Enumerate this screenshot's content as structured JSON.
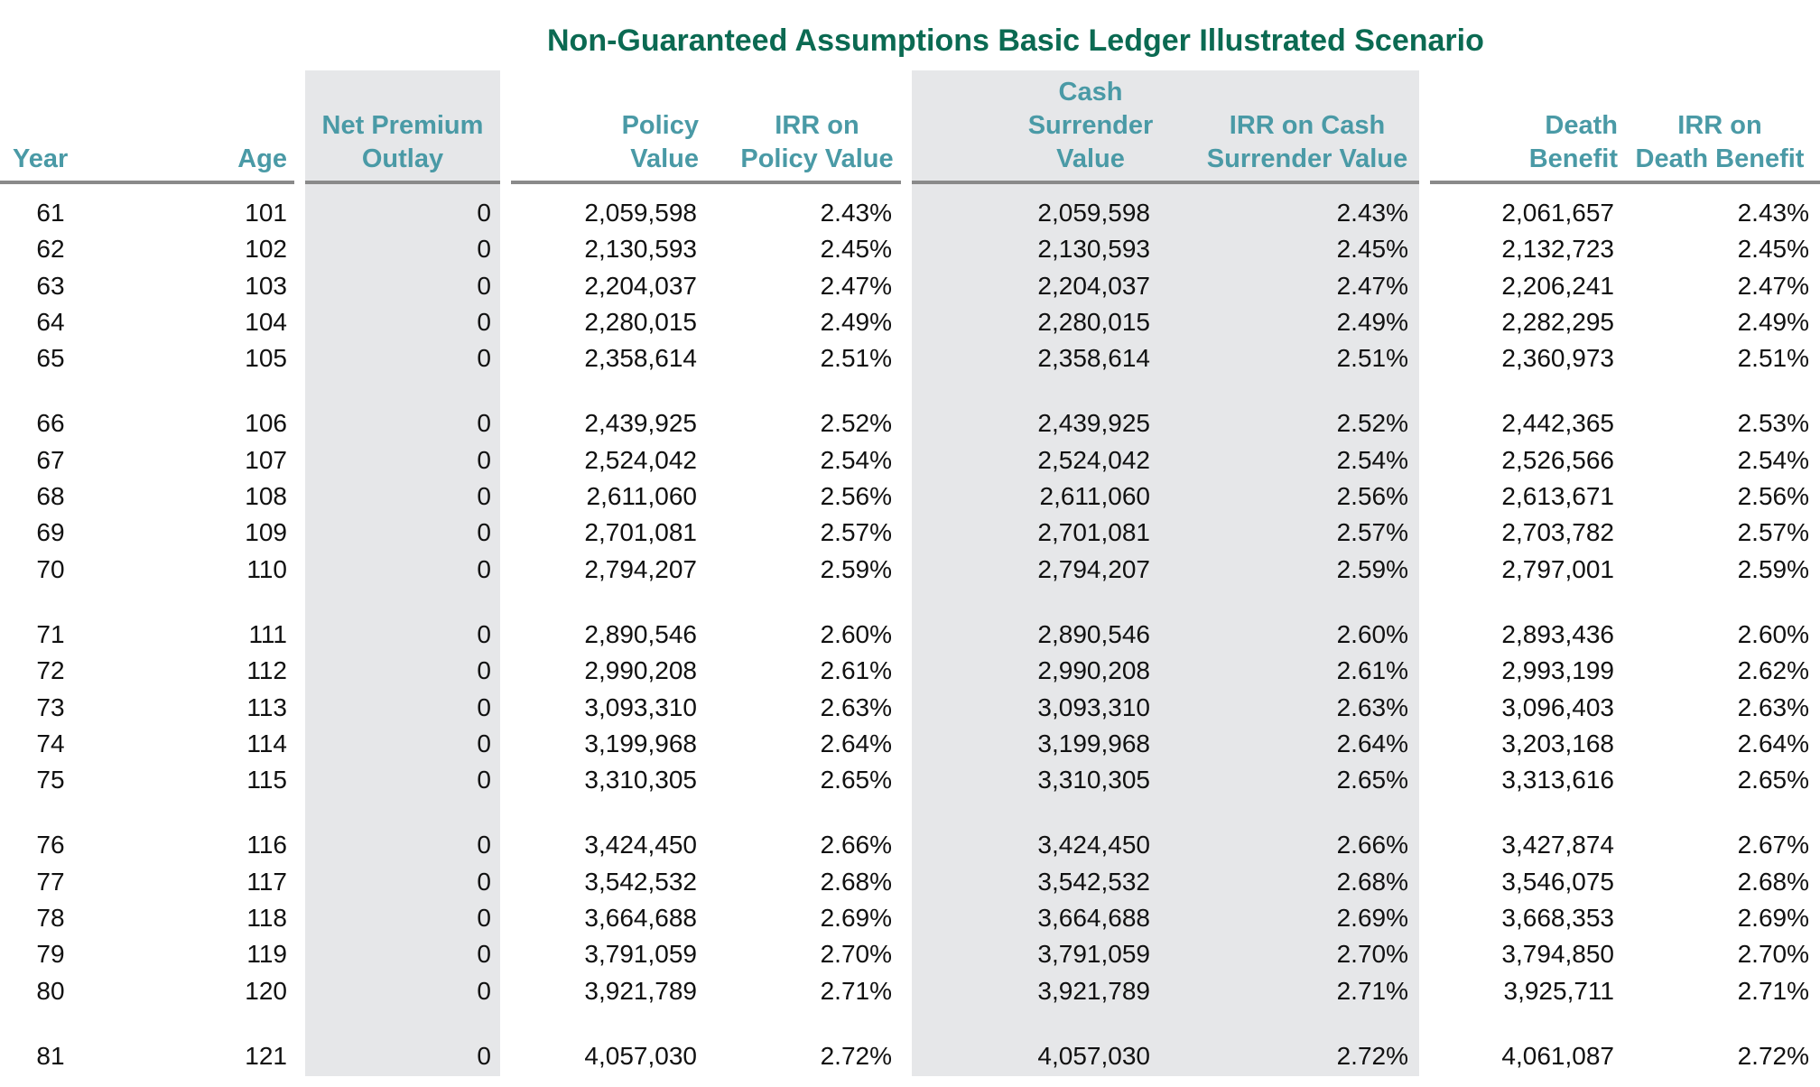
{
  "title": "Non-Guaranteed Assumptions Basic Ledger Illustrated Scenario",
  "columns": {
    "year": [
      "Year"
    ],
    "age": [
      "Age"
    ],
    "net_premium": [
      "Net Premium",
      "Outlay"
    ],
    "policy_value": [
      "Policy",
      "Value"
    ],
    "irr_policy": [
      "IRR on",
      "Policy Value"
    ],
    "cash_surrender": [
      "Cash",
      "Surrender",
      "Value"
    ],
    "irr_cash": [
      "IRR on Cash",
      "Surrender Value"
    ],
    "death_benefit": [
      "Death",
      "Benefit"
    ],
    "irr_death": [
      "IRR on",
      "Death Benefit"
    ]
  },
  "colors": {
    "title": "#0b6a52",
    "header": "#4a9aa6",
    "shade": "#e6e7e9",
    "rule": "#8a8a8a"
  },
  "rows": [
    [
      "61",
      "101",
      "0",
      "2,059,598",
      "2.43%",
      "2,059,598",
      "2.43%",
      "2,061,657",
      "2.43%"
    ],
    [
      "62",
      "102",
      "0",
      "2,130,593",
      "2.45%",
      "2,130,593",
      "2.45%",
      "2,132,723",
      "2.45%"
    ],
    [
      "63",
      "103",
      "0",
      "2,204,037",
      "2.47%",
      "2,204,037",
      "2.47%",
      "2,206,241",
      "2.47%"
    ],
    [
      "64",
      "104",
      "0",
      "2,280,015",
      "2.49%",
      "2,280,015",
      "2.49%",
      "2,282,295",
      "2.49%"
    ],
    [
      "65",
      "105",
      "0",
      "2,358,614",
      "2.51%",
      "2,358,614",
      "2.51%",
      "2,360,973",
      "2.51%"
    ],
    [
      "66",
      "106",
      "0",
      "2,439,925",
      "2.52%",
      "2,439,925",
      "2.52%",
      "2,442,365",
      "2.53%"
    ],
    [
      "67",
      "107",
      "0",
      "2,524,042",
      "2.54%",
      "2,524,042",
      "2.54%",
      "2,526,566",
      "2.54%"
    ],
    [
      "68",
      "108",
      "0",
      "2,611,060",
      "2.56%",
      "2,611,060",
      "2.56%",
      "2,613,671",
      "2.56%"
    ],
    [
      "69",
      "109",
      "0",
      "2,701,081",
      "2.57%",
      "2,701,081",
      "2.57%",
      "2,703,782",
      "2.57%"
    ],
    [
      "70",
      "110",
      "0",
      "2,794,207",
      "2.59%",
      "2,794,207",
      "2.59%",
      "2,797,001",
      "2.59%"
    ],
    [
      "71",
      "111",
      "0",
      "2,890,546",
      "2.60%",
      "2,890,546",
      "2.60%",
      "2,893,436",
      "2.60%"
    ],
    [
      "72",
      "112",
      "0",
      "2,990,208",
      "2.61%",
      "2,990,208",
      "2.61%",
      "2,993,199",
      "2.62%"
    ],
    [
      "73",
      "113",
      "0",
      "3,093,310",
      "2.63%",
      "3,093,310",
      "2.63%",
      "3,096,403",
      "2.63%"
    ],
    [
      "74",
      "114",
      "0",
      "3,199,968",
      "2.64%",
      "3,199,968",
      "2.64%",
      "3,203,168",
      "2.64%"
    ],
    [
      "75",
      "115",
      "0",
      "3,310,305",
      "2.65%",
      "3,310,305",
      "2.65%",
      "3,313,616",
      "2.65%"
    ],
    [
      "76",
      "116",
      "0",
      "3,424,450",
      "2.66%",
      "3,424,450",
      "2.66%",
      "3,427,874",
      "2.67%"
    ],
    [
      "77",
      "117",
      "0",
      "3,542,532",
      "2.68%",
      "3,542,532",
      "2.68%",
      "3,546,075",
      "2.68%"
    ],
    [
      "78",
      "118",
      "0",
      "3,664,688",
      "2.69%",
      "3,664,688",
      "2.69%",
      "3,668,353",
      "2.69%"
    ],
    [
      "79",
      "119",
      "0",
      "3,791,059",
      "2.70%",
      "3,791,059",
      "2.70%",
      "3,794,850",
      "2.70%"
    ],
    [
      "80",
      "120",
      "0",
      "3,921,789",
      "2.71%",
      "3,921,789",
      "2.71%",
      "3,925,711",
      "2.71%"
    ],
    [
      "81",
      "121",
      "0",
      "4,057,030",
      "2.72%",
      "4,057,030",
      "2.72%",
      "4,061,087",
      "2.72%"
    ]
  ]
}
